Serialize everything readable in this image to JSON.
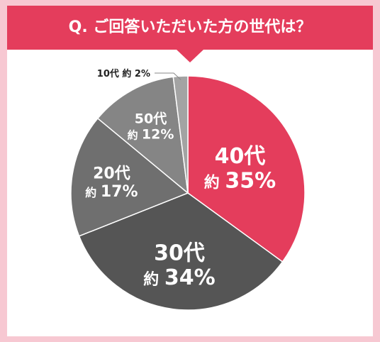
{
  "question": "Q. ご回答いただいた方の世代は？",
  "chart_data": {
    "type": "pie",
    "title": "Q. ご回答いただいた方の世代は？",
    "slices": [
      {
        "category": "40代",
        "approx_prefix": "約",
        "value": 35,
        "value_text": "35%",
        "color": "#e43d5c"
      },
      {
        "category": "30代",
        "approx_prefix": "約",
        "value": 34,
        "value_text": "34%",
        "color": "#555555"
      },
      {
        "category": "20代",
        "approx_prefix": "約",
        "value": 17,
        "value_text": "17%",
        "color": "#6f6f6f"
      },
      {
        "category": "50代",
        "approx_prefix": "約",
        "value": 12,
        "value_text": "12%",
        "color": "#858585"
      },
      {
        "category": "10代",
        "approx_prefix": "約",
        "value": 2,
        "value_text": "2%",
        "color": "#a3a3a3"
      }
    ],
    "unit": "%",
    "start": "12 o'clock",
    "direction": "clockwise"
  },
  "colors": {
    "accent": "#e43d5c",
    "frame": "#f7c8d2",
    "slice_text": "#ffffff",
    "callout_text": "#222222"
  }
}
